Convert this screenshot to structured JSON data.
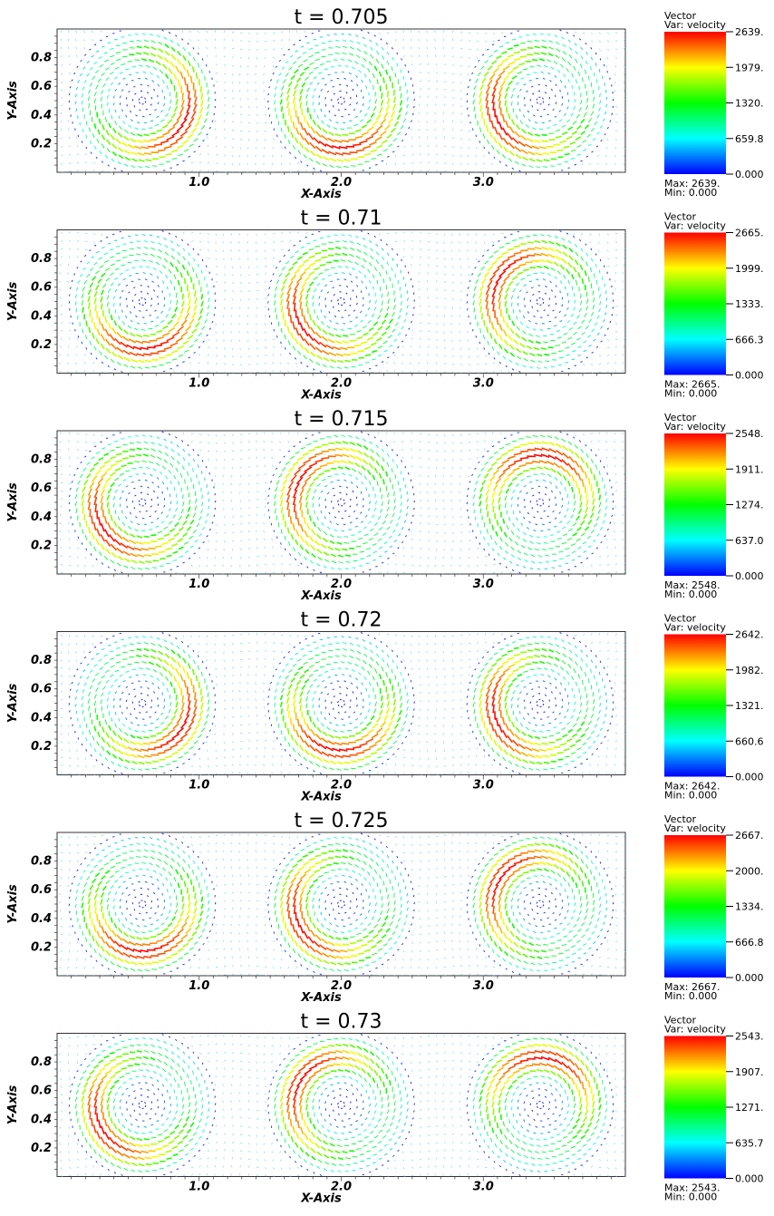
{
  "chart_data": [
    {
      "type": "vector_field",
      "title": "t = 0.705",
      "xlabel": "X-Axis",
      "ylabel": "Y-Axis",
      "xlim": [
        0,
        4.0
      ],
      "ylim": [
        0,
        1.0
      ],
      "xticks": [
        "1.0",
        "2.0",
        "3.0"
      ],
      "yticks": [
        "0.2",
        "0.4",
        "0.6",
        "0.8"
      ],
      "vortex_centers": [
        {
          "x": 0.6,
          "y": 0.5
        },
        {
          "x": 2.0,
          "y": 0.5
        },
        {
          "x": 3.4,
          "y": 0.5
        }
      ],
      "vortex_phase_deg": 25,
      "colorbar": {
        "line1": "Vector",
        "line2": "Var: velocity",
        "ticks": [
          "2639.",
          "1979.",
          "1320.",
          "659.8",
          "0.000"
        ],
        "max_label": "Max:  2639.",
        "min_label": "Min:  0.000"
      }
    },
    {
      "type": "vector_field",
      "title": "t = 0.71",
      "xlabel": "X-Axis",
      "ylabel": "Y-Axis",
      "xlim": [
        0,
        4.0
      ],
      "ylim": [
        0,
        1.0
      ],
      "xticks": [
        "1.0",
        "2.0",
        "3.0"
      ],
      "yticks": [
        "0.2",
        "0.4",
        "0.6",
        "0.8"
      ],
      "vortex_centers": [
        {
          "x": 0.6,
          "y": 0.5
        },
        {
          "x": 2.0,
          "y": 0.5
        },
        {
          "x": 3.4,
          "y": 0.5
        }
      ],
      "vortex_phase_deg": 80,
      "colorbar": {
        "line1": "Vector",
        "line2": "Var: velocity",
        "ticks": [
          "2665.",
          "1999.",
          "1333.",
          "666.3",
          "0.000"
        ],
        "max_label": "Max:  2665.",
        "min_label": "Min:  0.000"
      }
    },
    {
      "type": "vector_field",
      "title": "t = 0.715",
      "xlabel": "X-Axis",
      "ylabel": "Y-Axis",
      "xlim": [
        0,
        4.0
      ],
      "ylim": [
        0,
        1.0
      ],
      "xticks": [
        "1.0",
        "2.0",
        "3.0"
      ],
      "yticks": [
        "0.2",
        "0.4",
        "0.6",
        "0.8"
      ],
      "vortex_centers": [
        {
          "x": 0.6,
          "y": 0.5
        },
        {
          "x": 2.0,
          "y": 0.5
        },
        {
          "x": 3.4,
          "y": 0.5
        }
      ],
      "vortex_phase_deg": 140,
      "colorbar": {
        "line1": "Vector",
        "line2": "Var: velocity",
        "ticks": [
          "2548.",
          "1911.",
          "1274.",
          "637.0",
          "0.000"
        ],
        "max_label": "Max:  2548.",
        "min_label": "Min:  0.000"
      }
    },
    {
      "type": "vector_field",
      "title": "t = 0.72",
      "xlabel": "X-Axis",
      "ylabel": "Y-Axis",
      "xlim": [
        0,
        4.0
      ],
      "ylim": [
        0,
        1.0
      ],
      "xticks": [
        "1.0",
        "2.0",
        "3.0"
      ],
      "yticks": [
        "0.2",
        "0.4",
        "0.6",
        "0.8"
      ],
      "vortex_centers": [
        {
          "x": 0.6,
          "y": 0.5
        },
        {
          "x": 2.0,
          "y": 0.5
        },
        {
          "x": 3.4,
          "y": 0.5
        }
      ],
      "vortex_phase_deg": 30,
      "colorbar": {
        "line1": "Vector",
        "line2": "Var: velocity",
        "ticks": [
          "2642.",
          "1982.",
          "1321.",
          "660.6",
          "0.000"
        ],
        "max_label": "Max:  2642.",
        "min_label": "Min:  0.000"
      }
    },
    {
      "type": "vector_field",
      "title": "t = 0.725",
      "xlabel": "X-Axis",
      "ylabel": "Y-Axis",
      "xlim": [
        0,
        4.0
      ],
      "ylim": [
        0,
        1.0
      ],
      "xticks": [
        "1.0",
        "2.0",
        "3.0"
      ],
      "yticks": [
        "0.2",
        "0.4",
        "0.6",
        "0.8"
      ],
      "vortex_centers": [
        {
          "x": 0.6,
          "y": 0.5
        },
        {
          "x": 2.0,
          "y": 0.5
        },
        {
          "x": 3.4,
          "y": 0.5
        }
      ],
      "vortex_phase_deg": 85,
      "colorbar": {
        "line1": "Vector",
        "line2": "Var: velocity",
        "ticks": [
          "2667.",
          "2000.",
          "1334.",
          "666.8",
          "0.000"
        ],
        "max_label": "Max:  2667.",
        "min_label": "Min:  0.000"
      }
    },
    {
      "type": "vector_field",
      "title": "t = 0.73",
      "xlabel": "X-Axis",
      "ylabel": "Y-Axis",
      "xlim": [
        0,
        4.0
      ],
      "ylim": [
        0,
        1.0
      ],
      "xticks": [
        "1.0",
        "2.0",
        "3.0"
      ],
      "yticks": [
        "0.2",
        "0.4",
        "0.6",
        "0.8"
      ],
      "vortex_centers": [
        {
          "x": 0.6,
          "y": 0.5
        },
        {
          "x": 2.0,
          "y": 0.5
        },
        {
          "x": 3.4,
          "y": 0.5
        }
      ],
      "vortex_phase_deg": 145,
      "colorbar": {
        "line1": "Vector",
        "line2": "Var: velocity",
        "ticks": [
          "2543.",
          "1907.",
          "1271.",
          "635.7",
          "0.000"
        ],
        "max_label": "Max:  2543.",
        "min_label": "Min:  0.000"
      }
    }
  ],
  "colors": {
    "colormap": [
      "#0000ff",
      "#00ffff",
      "#00ff00",
      "#ffff00",
      "#ff0000"
    ],
    "frame": "#333333",
    "background": "#ffffff"
  }
}
